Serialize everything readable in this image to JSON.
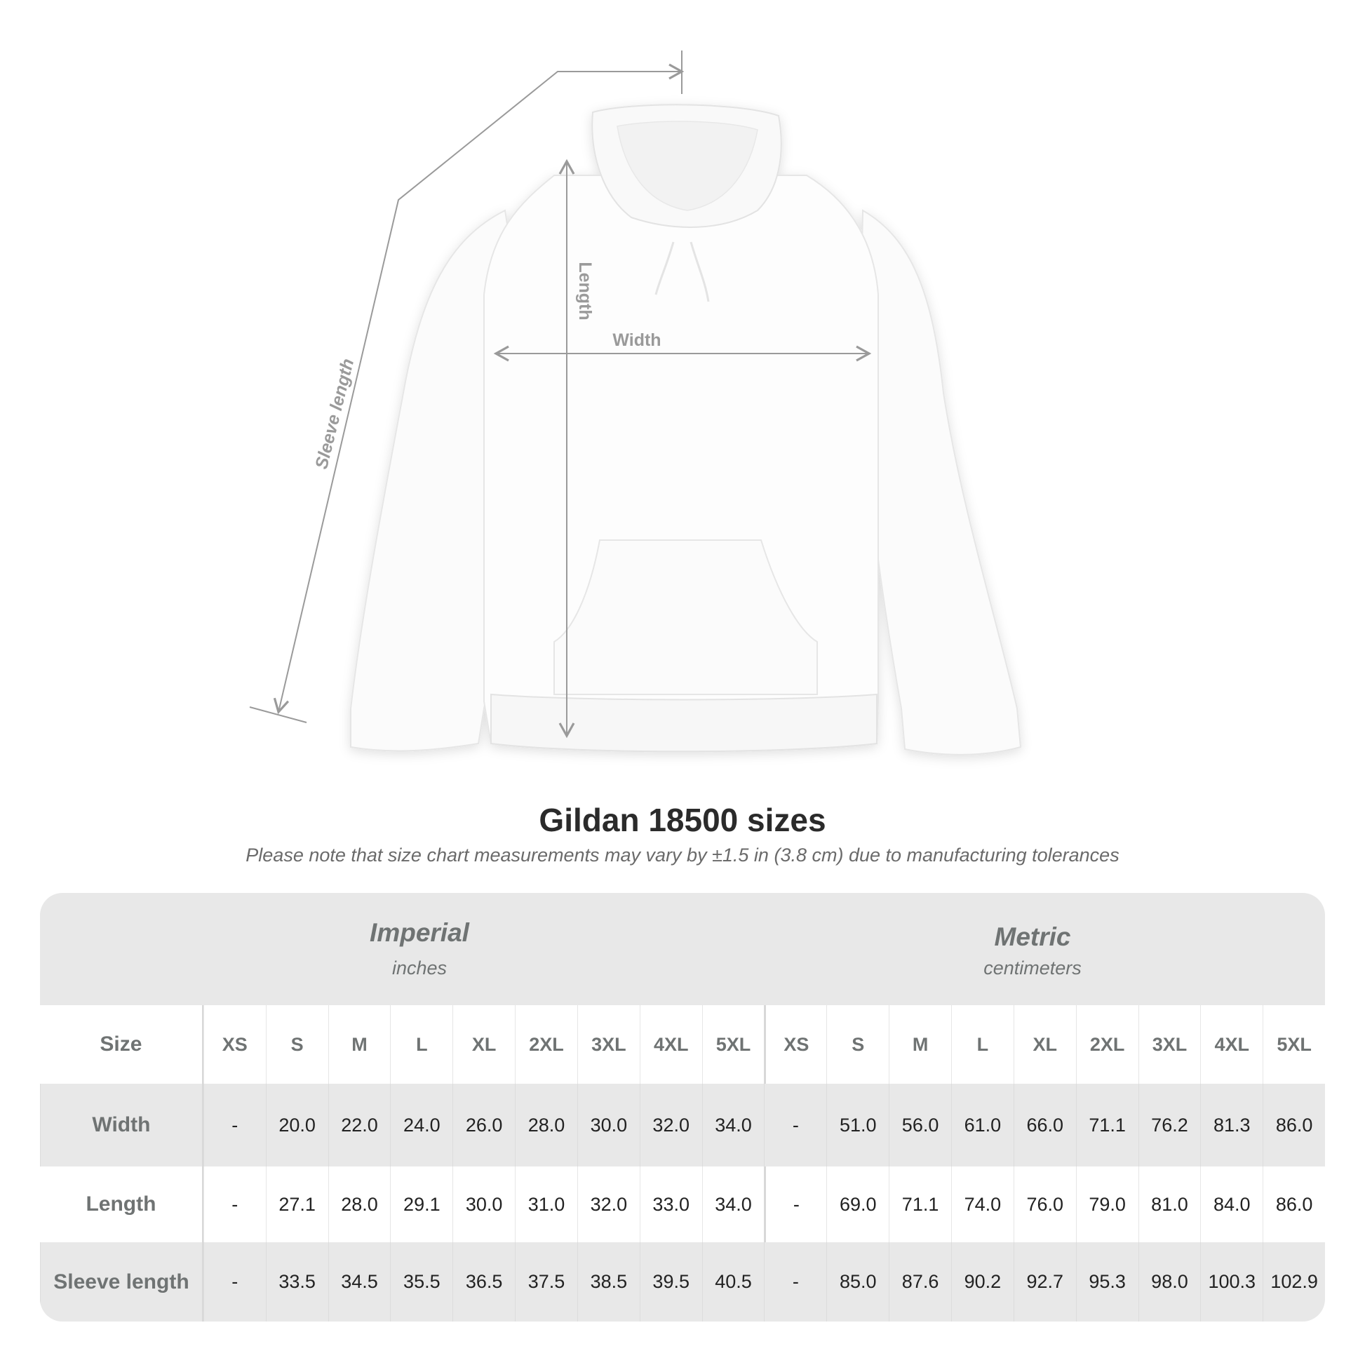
{
  "figure": {
    "labels": {
      "length": "Length",
      "width": "Width",
      "sleeve_length": "Sleeve length"
    },
    "line_color": "#9a9a9a"
  },
  "title": "Gildan 18500 sizes",
  "subtitle": "Please note that size chart measurements may vary by ±1.5 in (3.8 cm) due to manufacturing tolerances",
  "table": {
    "imperial": {
      "name": "Imperial",
      "unit": "inches"
    },
    "metric": {
      "name": "Metric",
      "unit": "centimeters"
    },
    "size_label": "Size",
    "sizes": [
      "XS",
      "S",
      "M",
      "L",
      "XL",
      "2XL",
      "3XL",
      "4XL",
      "5XL"
    ],
    "rows": [
      {
        "label": "Width",
        "imperial": [
          "-",
          "20.0",
          "22.0",
          "24.0",
          "26.0",
          "28.0",
          "30.0",
          "32.0",
          "34.0"
        ],
        "metric": [
          "-",
          "51.0",
          "56.0",
          "61.0",
          "66.0",
          "71.1",
          "76.2",
          "81.3",
          "86.0"
        ]
      },
      {
        "label": "Length",
        "imperial": [
          "-",
          "27.1",
          "28.0",
          "29.1",
          "30.0",
          "31.0",
          "32.0",
          "33.0",
          "34.0"
        ],
        "metric": [
          "-",
          "69.0",
          "71.1",
          "74.0",
          "76.0",
          "79.0",
          "81.0",
          "84.0",
          "86.0"
        ]
      },
      {
        "label": "Sleeve length",
        "imperial": [
          "-",
          "33.5",
          "34.5",
          "35.5",
          "36.5",
          "37.5",
          "38.5",
          "39.5",
          "40.5"
        ],
        "metric": [
          "-",
          "85.0",
          "87.6",
          "90.2",
          "92.7",
          "95.3",
          "98.0",
          "100.3",
          "102.9"
        ]
      }
    ]
  }
}
